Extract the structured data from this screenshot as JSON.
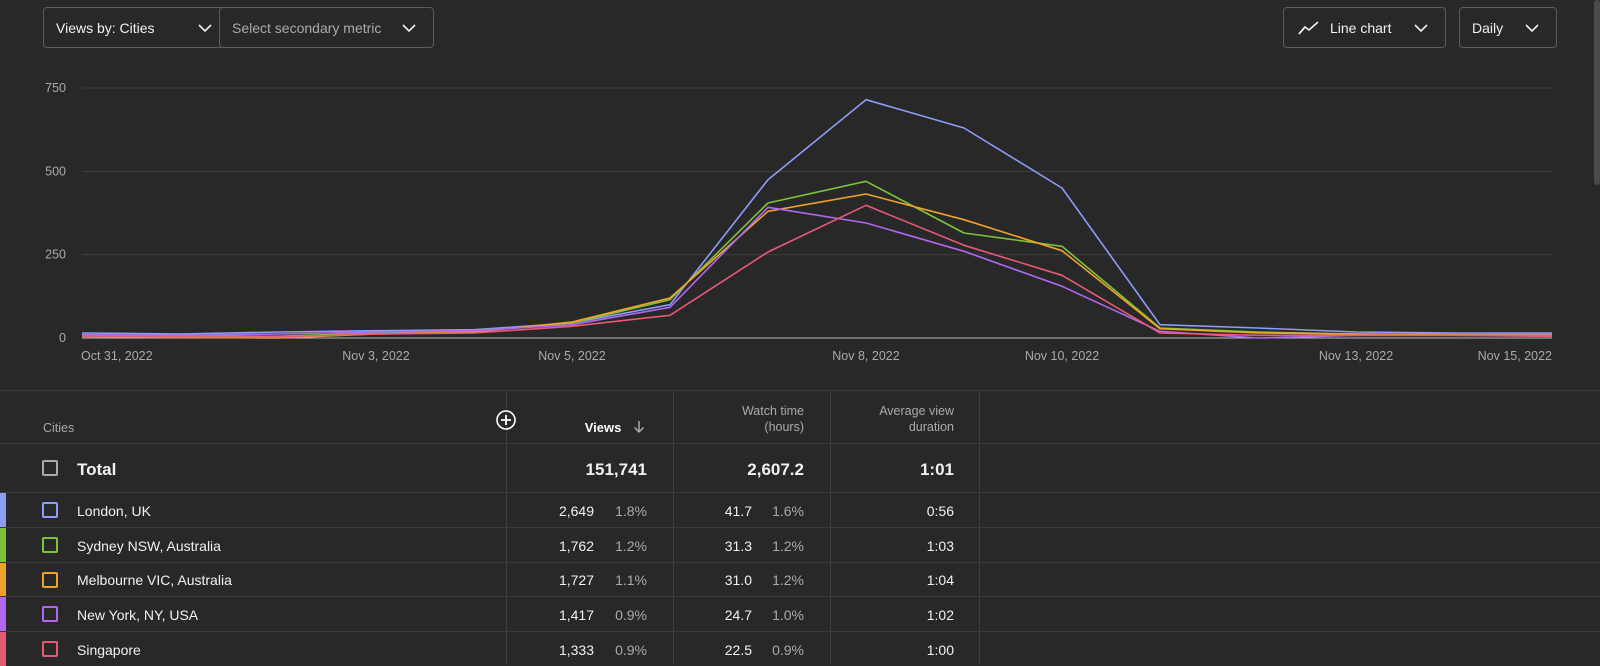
{
  "toolbar": {
    "views_by": "Views by: Cities",
    "secondary_metric": "Select secondary metric",
    "chart_type": "Line chart",
    "interval": "Daily"
  },
  "colors": {
    "background": "#282828",
    "london": "#8c9cf7",
    "sydney": "#7ec23a",
    "melbourne": "#f0a32a",
    "new_york": "#b167f0",
    "singapore": "#e75a75"
  },
  "chart_data": {
    "type": "line",
    "y_ticks": [
      "750",
      "500",
      "250",
      "0"
    ],
    "y_tick_values": [
      750,
      500,
      250,
      0
    ],
    "ylim": [
      0,
      750
    ],
    "grid": true,
    "x_tick_labels": [
      "Oct 31, 2022",
      "Nov 3, 2022",
      "Nov 5, 2022",
      "Nov 8, 2022",
      "Nov 10, 2022",
      "Nov 13, 2022",
      "Nov 15, 2022"
    ],
    "x_tick_indices": [
      0,
      3,
      5,
      8,
      10,
      13,
      15
    ],
    "x": [
      "Oct 31, 2022",
      "Nov 1, 2022",
      "Nov 2, 2022",
      "Nov 3, 2022",
      "Nov 4, 2022",
      "Nov 5, 2022",
      "Nov 6, 2022",
      "Nov 7, 2022",
      "Nov 8, 2022",
      "Nov 9, 2022",
      "Nov 10, 2022",
      "Nov 11, 2022",
      "Nov 12, 2022",
      "Nov 13, 2022",
      "Nov 14, 2022",
      "Nov 15, 2022"
    ],
    "series": [
      {
        "name": "London, UK",
        "color": "#8c9cf7",
        "values": [
          15,
          12,
          18,
          22,
          25,
          45,
          100,
          475,
          715,
          630,
          450,
          40,
          30,
          18,
          15,
          15
        ]
      },
      {
        "name": "Sydney NSW, Australia",
        "color": "#7ec23a",
        "values": [
          8,
          5,
          5,
          15,
          20,
          45,
          115,
          405,
          470,
          315,
          275,
          30,
          18,
          12,
          10,
          10
        ]
      },
      {
        "name": "Melbourne VIC, Australia",
        "color": "#f0a32a",
        "values": [
          5,
          2,
          0,
          12,
          18,
          48,
          120,
          380,
          432,
          355,
          262,
          28,
          15,
          12,
          10,
          10
        ]
      },
      {
        "name": "New York, NY, USA",
        "color": "#b167f0",
        "values": [
          10,
          8,
          12,
          18,
          22,
          40,
          92,
          392,
          345,
          260,
          155,
          20,
          0,
          8,
          8,
          8
        ]
      },
      {
        "name": "Singapore",
        "color": "#e75a75",
        "values": [
          5,
          3,
          3,
          12,
          15,
          35,
          68,
          258,
          398,
          278,
          188,
          15,
          8,
          8,
          8,
          5
        ]
      }
    ]
  },
  "table": {
    "headers": {
      "dimension": "Cities",
      "views": "Views",
      "watch_time": "Watch time (hours)",
      "watch_time_line1": "Watch time",
      "watch_time_line2": "(hours)",
      "avg_view_line1": "Average view",
      "avg_view_line2": "duration"
    },
    "total": {
      "label": "Total",
      "views": "151,741",
      "watch_time": "2,607.2",
      "avg_duration": "1:01"
    },
    "rows": [
      {
        "name": "London, UK",
        "views": "2,649",
        "views_pct": "1.8%",
        "watch": "41.7",
        "watch_pct": "1.6%",
        "avg": "0:56",
        "color": "#8c9cf7"
      },
      {
        "name": "Sydney NSW, Australia",
        "views": "1,762",
        "views_pct": "1.2%",
        "watch": "31.3",
        "watch_pct": "1.2%",
        "avg": "1:03",
        "color": "#7ec23a"
      },
      {
        "name": "Melbourne VIC, Australia",
        "views": "1,727",
        "views_pct": "1.1%",
        "watch": "31.0",
        "watch_pct": "1.2%",
        "avg": "1:04",
        "color": "#f0a32a"
      },
      {
        "name": "New York, NY, USA",
        "views": "1,417",
        "views_pct": "0.9%",
        "watch": "24.7",
        "watch_pct": "1.0%",
        "avg": "1:02",
        "color": "#b167f0"
      },
      {
        "name": "Singapore",
        "views": "1,333",
        "views_pct": "0.9%",
        "watch": "22.5",
        "watch_pct": "0.9%",
        "avg": "1:00",
        "color": "#e75a75"
      }
    ]
  }
}
